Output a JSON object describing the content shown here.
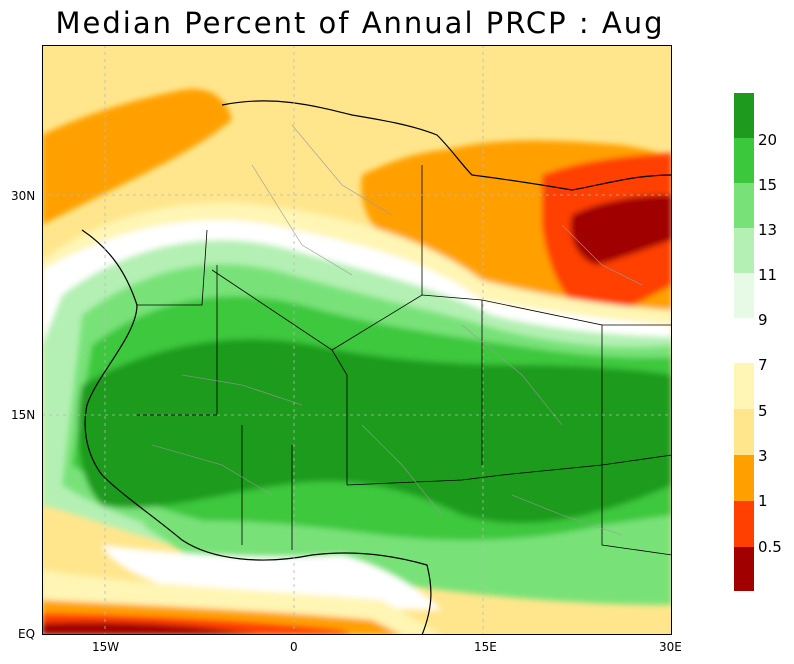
{
  "title": "Median Percent of Annual PRCP :    Aug",
  "axes": {
    "y_ticks": [
      "30N",
      "15N",
      "EQ"
    ],
    "x_ticks": [
      "15W",
      "0",
      "15E",
      "30E"
    ]
  },
  "legend": {
    "upper": [
      {
        "label": "20",
        "color": "#1e9b1e"
      },
      {
        "label": "15",
        "color": "#3cc83c"
      },
      {
        "label": "13",
        "color": "#78e278"
      },
      {
        "label": "11",
        "color": "#b4f0b4"
      },
      {
        "label": "9",
        "color": "#e6fae6"
      }
    ],
    "lower": [
      {
        "label": "7",
        "color": "#fff5b4"
      },
      {
        "label": "5",
        "color": "#ffe68c"
      },
      {
        "label": "3",
        "color": "#ffa000"
      },
      {
        "label": "1",
        "color": "#ff4000"
      },
      {
        "label": "0.5",
        "color": "#a00000"
      }
    ]
  },
  "colors": {
    "very_dry": "#a00000",
    "dry": "#ff4000",
    "orange": "#ffa000",
    "light_orange": "#ffe68c",
    "pale_yellow": "#fff5b4",
    "white": "#ffffff",
    "palest_green": "#e6fae6",
    "light_green": "#b4f0b4",
    "green": "#78e278",
    "mid_green": "#3cc83c",
    "dark_green": "#1e9b1e"
  }
}
